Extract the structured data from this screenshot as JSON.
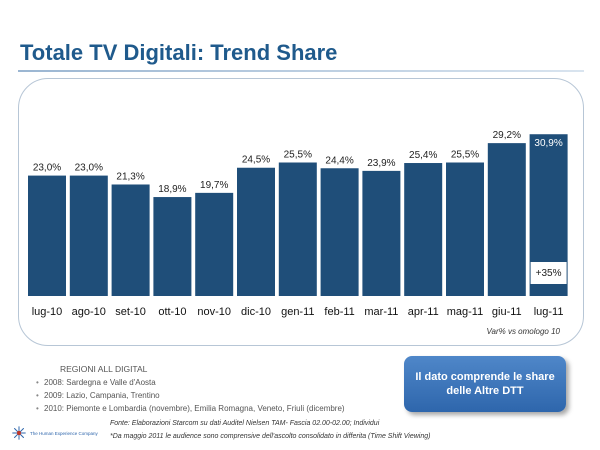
{
  "title": "Totale TV Digitali: Trend Share",
  "chart_data": {
    "type": "bar",
    "categories": [
      "lug-10",
      "ago-10",
      "set-10",
      "ott-10",
      "nov-10",
      "dic-10",
      "gen-11",
      "feb-11",
      "mar-11",
      "apr-11",
      "mag-11",
      "giu-11",
      "lug-11"
    ],
    "values": [
      23.0,
      23.0,
      21.3,
      18.9,
      19.7,
      24.5,
      25.5,
      24.4,
      23.9,
      25.4,
      25.5,
      29.2,
      30.9
    ],
    "labels": [
      "23,0%",
      "23,0%",
      "21,3%",
      "18,9%",
      "19,7%",
      "24,5%",
      "25,5%",
      "24,4%",
      "23,9%",
      "25,4%",
      "25,5%",
      "29,2%",
      "30,9%"
    ],
    "annotation": {
      "text": "+35%",
      "category": "lug-11"
    },
    "note": "Var% vs omologo 10",
    "ylim": [
      0,
      34
    ],
    "bar_color": "#1f4e79",
    "xlabel": "",
    "ylabel": ""
  },
  "regions": {
    "title": "REGIONI ALL DIGITAL",
    "items": [
      "2008: Sardegna e Valle d'Aosta",
      "2009: Lazio, Campania, Trentino",
      "2010: Piemonte e Lombardia (novembre), Emilia Romagna, Veneto, Friuli (dicembre)"
    ]
  },
  "callout": "Il dato comprende le share delle Altre DTT",
  "footnotes": {
    "fonte": "Fonte: Elaborazioni Starcom su dati Auditel Nielsen TAM- Fascia 02.00-02.00; Individui",
    "audience": "*Da maggio 2011 le audience sono comprensive dell'ascolto consolidato in differita (Time Shift Viewing)"
  },
  "logo": {
    "text": "The Human Experience Company",
    "icon": "starburst-logo-icon",
    "color": "#2e66ac"
  }
}
